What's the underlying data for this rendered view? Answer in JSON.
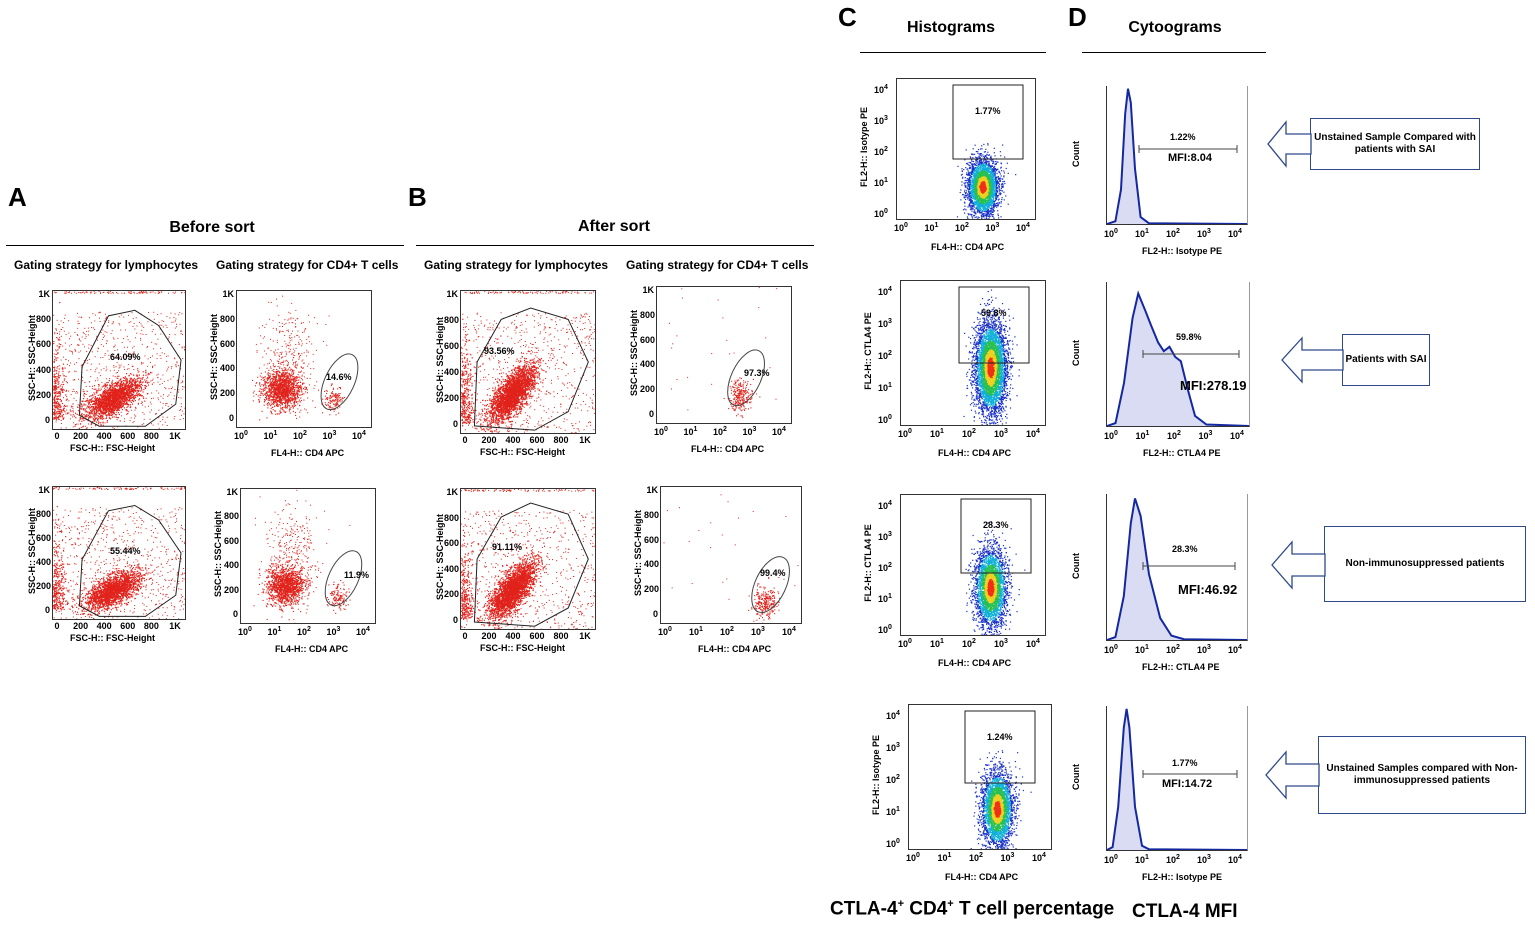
{
  "panels": {
    "A": {
      "letter": "A",
      "title": "Before sort",
      "left_sub": "Gating strategy for lymphocytes",
      "right_sub": "Gating strategy for CD4+ T cells"
    },
    "B": {
      "letter": "B",
      "title": "After sort",
      "left_sub": "Gating strategy for lymphocytes",
      "right_sub": "Gating strategy for CD4+ T cells"
    },
    "C": {
      "letter": "C",
      "title": "Histograms"
    },
    "D": {
      "letter": "D",
      "title": "Cytoograms"
    }
  },
  "axes": {
    "fsc_x": "FSC-H:: FSC-Height",
    "ssc_y": "SSC-H:: SSC-Height",
    "cd4_x": "FL4-H:: CD4 APC",
    "isotype_y": "FL2-H:: Isotype PE",
    "ctla4_y": "FL2-H:: CTLA4 PE",
    "count_y": "Count",
    "isotype_x": "FL2-H:: Isotype PE",
    "ctla4_x": "FL2-H:: CTLA4 PE"
  },
  "linear_ticks": [
    "0",
    "200",
    "400",
    "600",
    "800",
    "1K"
  ],
  "log_ticks": [
    "10",
    "10",
    "10",
    "10",
    "10"
  ],
  "log_exps": [
    "0",
    "1",
    "2",
    "3",
    "4"
  ],
  "gates": {
    "A_lymph_1": "64.09%",
    "A_cd4_1": "14.6%",
    "A_lymph_2": "55.44%",
    "A_cd4_2": "11.9%",
    "B_lymph_1": "93.56%",
    "B_cd4_1": "97.3%",
    "B_lymph_2": "91.11%",
    "B_cd4_2": "99.4%",
    "C_1": "1.77%",
    "C_2": "59.8%",
    "C_3": "28.3%",
    "C_4": "1.24%"
  },
  "histograms": [
    {
      "pct": "1.22%",
      "mfi": "MFI:8.04"
    },
    {
      "pct": "59.8%",
      "mfi": "MFI:278.19"
    },
    {
      "pct": "28.3%",
      "mfi": "MFI:46.92"
    },
    {
      "pct": "1.77%",
      "mfi": "MFI:14.72"
    }
  ],
  "notes": [
    "Unstained Sample Compared with patients with SAI",
    "Patients with SAI",
    "Non-immunosuppressed patients",
    "Unstained Samples compared with Non-immunosuppressed patients"
  ],
  "footers": {
    "c_prefix": "CTLA-4",
    "c_sup1": "+",
    "c_mid": " CD4",
    "c_sup2": "+",
    "c_suffix": " T cell percentage",
    "d": "CTLA-4 MFI"
  },
  "colors": {
    "dots": "#e0231c",
    "hist_line": "#1428a0",
    "hist_fill": "#d9dcf2",
    "note_border": "#2e4a8a"
  }
}
